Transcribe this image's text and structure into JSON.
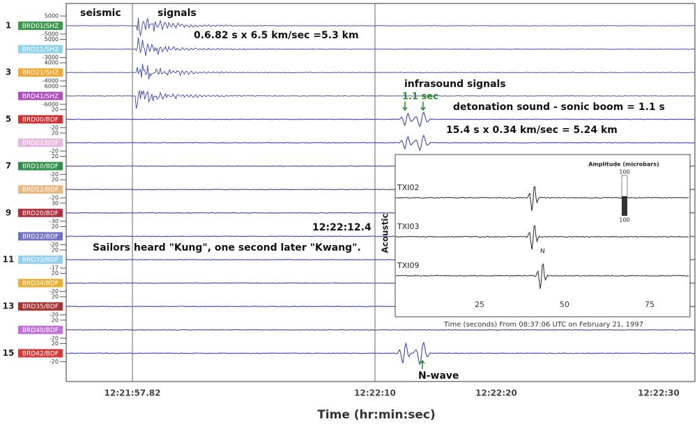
{
  "figure": {
    "annotations": {
      "seismic": "seismic",
      "signals": "signals",
      "seismic_calc": "0.6.82 s x 6.5 km/sec =5.3 km",
      "infrasound": "infrasound signals",
      "interval": "1.1 sec",
      "detonation": "detonation sound - sonic boom = 1.1 s",
      "infra_calc": "15.4 s x 0.34 km/sec = 5.24 km",
      "time_mark": "12:22:12.4",
      "sailors": "Sailors heard \"Kung\", one second later \"Kwang\".",
      "nwave": "N-wave"
    },
    "row_numbers": [
      "1",
      "3",
      "5",
      "7",
      "9",
      "11",
      "13",
      "15"
    ],
    "channels": [
      {
        "label": "BRD01/SHZ",
        "color": "#3a9a4a",
        "scale": [
          "5000",
          "-5000"
        ]
      },
      {
        "label": "BRD11/SHZ",
        "color": "#8fd3ea",
        "scale": [
          "5000",
          "-3000"
        ]
      },
      {
        "label": "BRD21/SHZ",
        "color": "#f0a830",
        "scale": [
          "4000",
          "-4000"
        ]
      },
      {
        "label": "BRD41/SHZ",
        "color": "#b050c0",
        "scale": [
          "6000",
          "-6000"
        ]
      },
      {
        "label": "BRD00/BDF",
        "color": "#d03030",
        "scale": [
          "20",
          "-20"
        ]
      },
      {
        "label": "BRD02/BDF",
        "color": "#e8b8e0",
        "scale": [
          "20",
          "-20"
        ]
      },
      {
        "label": "BRD10/BDF",
        "color": "#30904a",
        "scale": [
          "20",
          "-20"
        ]
      },
      {
        "label": "BRD12/BDF",
        "color": "#e8b880",
        "scale": [
          "20",
          "-20"
        ]
      },
      {
        "label": "BRD20/BDF",
        "color": "#b03040",
        "scale": [
          "30",
          "-30"
        ]
      },
      {
        "label": "BRD22/BDF",
        "color": "#7070c8",
        "scale": [
          "20",
          "-20"
        ]
      },
      {
        "label": "BRD33/BDF",
        "color": "#90d0f0",
        "scale": [
          "20",
          "-17"
        ]
      },
      {
        "label": "BRD34/BDF",
        "color": "#e8b030",
        "scale": [
          "20",
          "-20"
        ]
      },
      {
        "label": "BRD35/BDF",
        "color": "#a83030",
        "scale": [
          "20",
          "-20"
        ]
      },
      {
        "label": "BRD40/BDF",
        "color": "#c070d8",
        "scale": [
          "20",
          "-20"
        ]
      },
      {
        "label": "BRD42/BDF",
        "color": "#d83838",
        "scale": [
          "20",
          "-20"
        ]
      }
    ],
    "x_ticks": [
      "12:21:57.82",
      "12:22:10",
      "12:22:20",
      "12:22:30"
    ],
    "x_label": "Time (hr:min:sec)",
    "inset": {
      "y_label": "Acoustic",
      "traces": [
        "TXI02",
        "TXI03",
        "TXI09"
      ],
      "n_label": "N",
      "x_ticks": [
        "25",
        "50",
        "75"
      ],
      "x_label": "Time (seconds) From 08:37:06 UTC on February 21, 1997",
      "amp_title": "Amplitude (microbars)",
      "amp_top": "100",
      "amp_bottom": "100"
    }
  }
}
